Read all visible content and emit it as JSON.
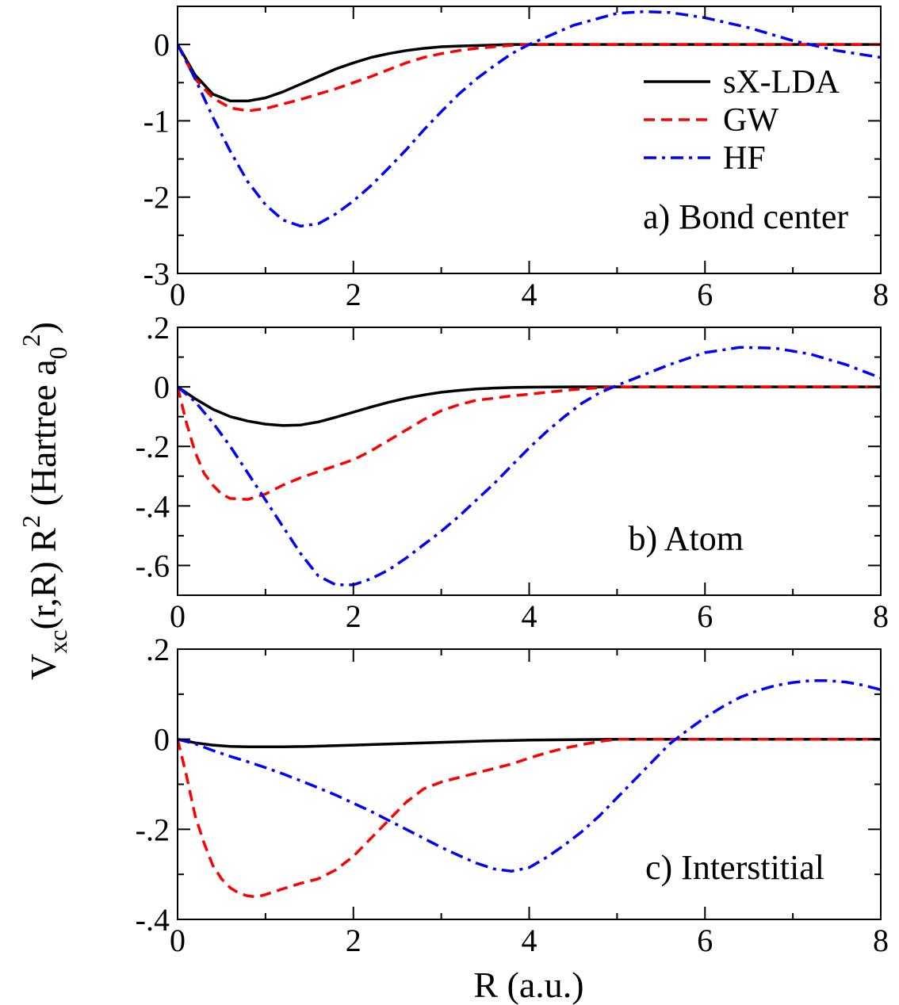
{
  "figure": {
    "ylabel": {
      "main": "V",
      "sub1": "xc",
      "mid": "(r,R) R",
      "sup": "2",
      "tail": " (Hartree a",
      "sub2": "0",
      "sup2": "2",
      "end": ")"
    },
    "xlabel": "R (a.u.)"
  },
  "colors": {
    "sx_lda": "#000000",
    "gw": "#ff0000",
    "hf": "#0000ff"
  },
  "chart_data": [
    {
      "type": "line",
      "panel": "a",
      "annotation": "a) Bond center",
      "xlim": [
        0,
        8
      ],
      "ylim": [
        -3,
        0.5
      ],
      "xticks": [
        0,
        2,
        4,
        6,
        8
      ],
      "yticks": [
        -3,
        -2,
        -1,
        0
      ],
      "legend": {
        "placement": "top-right",
        "entries": [
          "sX-LDA",
          "GW",
          "HF"
        ]
      },
      "series": [
        {
          "name": "sX-LDA",
          "style": "solid",
          "color": "#000000",
          "x": [
            0,
            0.2,
            0.4,
            0.6,
            0.8,
            1.0,
            1.2,
            1.4,
            1.6,
            1.8,
            2.0,
            2.2,
            2.4,
            2.6,
            2.8,
            3.0,
            3.2,
            3.5,
            3.8,
            4.0,
            5.0,
            6.0,
            7.0,
            8.0
          ],
          "y": [
            0,
            -0.4,
            -0.65,
            -0.74,
            -0.74,
            -0.7,
            -0.62,
            -0.52,
            -0.42,
            -0.32,
            -0.24,
            -0.17,
            -0.12,
            -0.08,
            -0.05,
            -0.03,
            -0.02,
            -0.01,
            0,
            0,
            0,
            0,
            0,
            0
          ]
        },
        {
          "name": "GW",
          "style": "dashed",
          "color": "#ff0000",
          "x": [
            0,
            0.2,
            0.4,
            0.6,
            0.8,
            1.0,
            1.2,
            1.4,
            1.6,
            1.8,
            2.0,
            2.2,
            2.4,
            2.6,
            2.8,
            3.0,
            3.2,
            3.4,
            3.6,
            3.8,
            4.0,
            5.0,
            6.0,
            7.0,
            8.0
          ],
          "y": [
            0,
            -0.45,
            -0.7,
            -0.83,
            -0.87,
            -0.84,
            -0.78,
            -0.72,
            -0.65,
            -0.58,
            -0.5,
            -0.42,
            -0.33,
            -0.24,
            -0.17,
            -0.12,
            -0.08,
            -0.05,
            -0.03,
            -0.01,
            0,
            0,
            0,
            0,
            0
          ]
        },
        {
          "name": "HF",
          "style": "dashdot",
          "color": "#0000ff",
          "x": [
            0,
            0.2,
            0.4,
            0.6,
            0.8,
            1.0,
            1.2,
            1.4,
            1.6,
            1.8,
            2.0,
            2.2,
            2.4,
            2.6,
            2.8,
            3.0,
            3.2,
            3.4,
            3.6,
            3.8,
            4.0,
            4.2,
            4.5,
            5.0,
            5.3,
            5.6,
            6.0,
            6.5,
            7.0,
            7.5,
            8.0
          ],
          "y": [
            0,
            -0.45,
            -0.95,
            -1.4,
            -1.8,
            -2.1,
            -2.3,
            -2.38,
            -2.35,
            -2.22,
            -2.05,
            -1.85,
            -1.62,
            -1.38,
            -1.12,
            -0.88,
            -0.65,
            -0.45,
            -0.28,
            -0.12,
            0,
            0.1,
            0.25,
            0.41,
            0.43,
            0.42,
            0.35,
            0.22,
            0.05,
            -0.08,
            -0.17
          ]
        }
      ]
    },
    {
      "type": "line",
      "panel": "b",
      "annotation": "b) Atom",
      "xlim": [
        0,
        8
      ],
      "ylim": [
        -0.7,
        0.2
      ],
      "xticks": [
        0,
        2,
        4,
        6,
        8
      ],
      "yticks": [
        -0.6,
        -0.4,
        -0.2,
        0,
        0.2
      ],
      "series": [
        {
          "name": "sX-LDA",
          "style": "solid",
          "color": "#000000",
          "x": [
            0,
            0.2,
            0.4,
            0.6,
            0.8,
            1.0,
            1.2,
            1.4,
            1.6,
            1.8,
            2.0,
            2.2,
            2.4,
            2.6,
            2.8,
            3.0,
            3.2,
            3.4,
            3.6,
            3.8,
            4.0,
            4.5,
            5.0,
            6.0,
            7.0,
            8.0
          ],
          "y": [
            0,
            -0.04,
            -0.075,
            -0.1,
            -0.115,
            -0.125,
            -0.13,
            -0.128,
            -0.118,
            -0.102,
            -0.085,
            -0.068,
            -0.052,
            -0.038,
            -0.027,
            -0.018,
            -0.012,
            -0.007,
            -0.004,
            -0.002,
            -0.001,
            0,
            0,
            0,
            0,
            0
          ]
        },
        {
          "name": "GW",
          "style": "dashed",
          "color": "#ff0000",
          "x": [
            0,
            0.1,
            0.2,
            0.3,
            0.4,
            0.5,
            0.6,
            0.8,
            1.0,
            1.2,
            1.4,
            1.6,
            1.8,
            2.0,
            2.2,
            2.4,
            2.6,
            2.8,
            3.0,
            3.2,
            3.4,
            3.6,
            3.8,
            4.0,
            4.2,
            4.4,
            4.6,
            4.8,
            5.0,
            6.0,
            7.0,
            8.0
          ],
          "y": [
            0,
            -0.12,
            -0.22,
            -0.29,
            -0.33,
            -0.36,
            -0.375,
            -0.378,
            -0.36,
            -0.33,
            -0.305,
            -0.285,
            -0.265,
            -0.245,
            -0.215,
            -0.18,
            -0.145,
            -0.11,
            -0.08,
            -0.06,
            -0.045,
            -0.038,
            -0.03,
            -0.025,
            -0.018,
            -0.012,
            -0.007,
            -0.003,
            0,
            0,
            0,
            0
          ]
        },
        {
          "name": "HF",
          "style": "dashdot",
          "color": "#0000ff",
          "x": [
            0,
            0.2,
            0.4,
            0.6,
            0.8,
            1.0,
            1.2,
            1.4,
            1.6,
            1.8,
            2.0,
            2.2,
            2.4,
            2.6,
            2.8,
            3.0,
            3.2,
            3.4,
            3.6,
            3.8,
            4.0,
            4.2,
            4.4,
            4.6,
            4.8,
            5.0,
            5.3,
            5.6,
            6.0,
            6.4,
            6.8,
            7.2,
            7.6,
            8.0
          ],
          "y": [
            0,
            -0.05,
            -0.12,
            -0.2,
            -0.29,
            -0.38,
            -0.47,
            -0.56,
            -0.635,
            -0.665,
            -0.665,
            -0.645,
            -0.615,
            -0.575,
            -0.53,
            -0.485,
            -0.435,
            -0.38,
            -0.325,
            -0.265,
            -0.205,
            -0.15,
            -0.1,
            -0.055,
            -0.02,
            0.005,
            0.04,
            0.075,
            0.115,
            0.133,
            0.13,
            0.11,
            0.075,
            0.03
          ]
        }
      ]
    },
    {
      "type": "line",
      "panel": "c",
      "annotation": "c) Interstitial",
      "xlim": [
        0,
        8
      ],
      "ylim": [
        -0.4,
        0.2
      ],
      "xticks": [
        0,
        2,
        4,
        6,
        8
      ],
      "yticks": [
        -0.4,
        -0.2,
        0,
        0.2
      ],
      "series": [
        {
          "name": "sX-LDA",
          "style": "solid",
          "color": "#000000",
          "x": [
            0,
            0.2,
            0.4,
            0.6,
            0.8,
            1.0,
            1.2,
            1.5,
            2.0,
            2.5,
            3.0,
            3.5,
            4.0,
            4.5,
            5.0,
            6.0,
            7.0,
            8.0
          ],
          "y": [
            0,
            -0.008,
            -0.013,
            -0.016,
            -0.017,
            -0.017,
            -0.017,
            -0.016,
            -0.013,
            -0.01,
            -0.007,
            -0.004,
            -0.002,
            -0.001,
            0,
            0,
            0,
            0
          ]
        },
        {
          "name": "GW",
          "style": "dashed",
          "color": "#ff0000",
          "x": [
            0,
            0.1,
            0.2,
            0.3,
            0.4,
            0.5,
            0.6,
            0.7,
            0.8,
            0.9,
            1.0,
            1.2,
            1.4,
            1.6,
            1.8,
            2.0,
            2.2,
            2.4,
            2.6,
            2.8,
            3.0,
            3.2,
            3.4,
            3.6,
            3.8,
            4.0,
            4.2,
            4.4,
            4.6,
            4.8,
            5.0,
            6.0,
            7.0,
            8.0
          ],
          "y": [
            0,
            -0.08,
            -0.17,
            -0.23,
            -0.28,
            -0.31,
            -0.33,
            -0.342,
            -0.348,
            -0.35,
            -0.345,
            -0.332,
            -0.32,
            -0.31,
            -0.29,
            -0.26,
            -0.22,
            -0.18,
            -0.14,
            -0.11,
            -0.095,
            -0.085,
            -0.075,
            -0.065,
            -0.055,
            -0.042,
            -0.03,
            -0.02,
            -0.012,
            -0.005,
            0,
            0,
            0,
            0
          ]
        },
        {
          "name": "HF",
          "style": "dashdot",
          "color": "#0000ff",
          "x": [
            0,
            0.2,
            0.4,
            0.6,
            0.8,
            1.0,
            1.2,
            1.4,
            1.6,
            1.8,
            2.0,
            2.2,
            2.4,
            2.6,
            2.8,
            3.0,
            3.2,
            3.4,
            3.6,
            3.8,
            4.0,
            4.2,
            4.4,
            4.6,
            4.8,
            5.0,
            5.2,
            5.4,
            5.6,
            5.8,
            6.0,
            6.2,
            6.4,
            6.6,
            6.8,
            7.0,
            7.2,
            7.4,
            7.6,
            7.8,
            8.0
          ],
          "y": [
            0,
            -0.01,
            -0.025,
            -0.038,
            -0.05,
            -0.063,
            -0.077,
            -0.092,
            -0.108,
            -0.124,
            -0.142,
            -0.16,
            -0.18,
            -0.2,
            -0.22,
            -0.24,
            -0.258,
            -0.275,
            -0.288,
            -0.293,
            -0.285,
            -0.262,
            -0.235,
            -0.205,
            -0.17,
            -0.13,
            -0.09,
            -0.05,
            -0.01,
            0.02,
            0.048,
            0.072,
            0.093,
            0.108,
            0.119,
            0.126,
            0.13,
            0.13,
            0.127,
            0.12,
            0.11
          ]
        }
      ]
    }
  ]
}
